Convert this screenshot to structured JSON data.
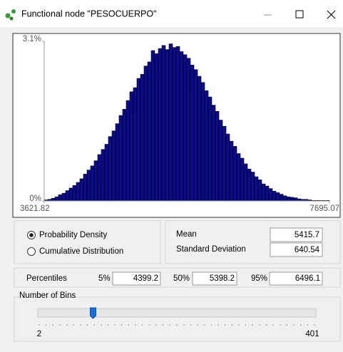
{
  "window": {
    "title": "Functional node \"PESOCUERPO\""
  },
  "chart_data": {
    "type": "histogram",
    "bins": [
      3621.82,
      3672.74,
      3723.65,
      3774.57,
      3825.49,
      3876.4,
      3927.31,
      3978.23,
      4029.15,
      4080.06,
      4130.98,
      4181.89,
      4232.81,
      4283.72,
      4334.64,
      4385.55,
      4436.47,
      4487.39,
      4538.3,
      4589.22,
      4640.13,
      4691.05,
      4741.96,
      4792.88,
      4843.8,
      4894.71,
      4945.63,
      4996.54,
      5047.46,
      5098.37,
      5149.29,
      5200.2,
      5251.12,
      5302.04,
      5352.95,
      5403.87,
      5454.78,
      5505.7,
      5556.61,
      5607.53,
      5658.45,
      5709.36,
      5760.28,
      5811.19,
      5862.11,
      5913.02,
      5963.94,
      6014.85,
      6065.77,
      6116.69,
      6167.6,
      6218.52,
      6269.43,
      6320.35,
      6371.26,
      6422.18,
      6473.09,
      6524.01,
      6574.93,
      6625.84,
      6676.76,
      6727.67,
      6778.59,
      6829.5,
      6880.42,
      6931.34,
      6982.25,
      7033.17,
      7084.08,
      7135.0,
      7185.91,
      7236.83,
      7287.75,
      7338.66,
      7389.58,
      7440.49,
      7491.41,
      7542.32,
      7593.24,
      7644.15,
      7695.07
    ],
    "values": [
      0.02,
      0.03,
      0.05,
      0.08,
      0.12,
      0.15,
      0.2,
      0.25,
      0.3,
      0.36,
      0.43,
      0.52,
      0.6,
      0.68,
      0.78,
      0.9,
      1.0,
      1.1,
      1.25,
      1.36,
      1.5,
      1.66,
      1.78,
      1.95,
      2.12,
      2.2,
      2.38,
      2.46,
      2.62,
      2.7,
      2.92,
      2.86,
      2.96,
      3.02,
      2.94,
      3.05,
      2.98,
      3.0,
      2.9,
      2.84,
      2.77,
      2.64,
      2.55,
      2.42,
      2.3,
      2.14,
      2.02,
      1.86,
      1.74,
      1.57,
      1.45,
      1.3,
      1.16,
      1.06,
      0.92,
      0.83,
      0.72,
      0.62,
      0.56,
      0.47,
      0.41,
      0.33,
      0.29,
      0.24,
      0.19,
      0.16,
      0.13,
      0.1,
      0.08,
      0.07,
      0.06,
      0.04,
      0.03,
      0.03,
      0.02,
      0.01,
      0.01,
      0.01,
      0.01,
      0.01
    ],
    "color": "#0c0c8a",
    "xlim": [
      3621.82,
      7695.07
    ],
    "xticks": [
      3621.82,
      7695.07
    ],
    "ylim": [
      0,
      3.1
    ],
    "yticks": [
      {
        "value": 0,
        "label": "0%"
      },
      {
        "value": 3.1,
        "label": "3.1%"
      }
    ]
  },
  "options": {
    "items": [
      "Probability Density",
      "Cumulative Distribution"
    ],
    "selected": 0
  },
  "stats": [
    {
      "label": "Mean",
      "value": 5415.7
    },
    {
      "label": "Standard Deviation",
      "value": 640.54
    }
  ],
  "percentiles": {
    "label": "Percentiles",
    "items": [
      {
        "label": "5%",
        "value": 4399.2
      },
      {
        "label": "50%",
        "value": 5398.2
      },
      {
        "label": "95%",
        "value": 6496.1
      }
    ]
  },
  "bins_control": {
    "label": "Number of Bins",
    "min": 2,
    "max": 401
  }
}
